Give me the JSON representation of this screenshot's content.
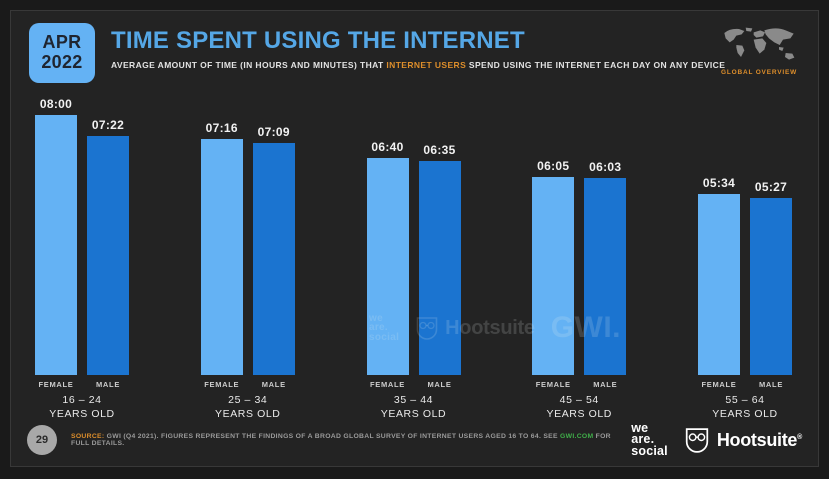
{
  "header": {
    "date_month": "APR",
    "date_year": "2022",
    "title": "TIME SPENT USING THE INTERNET",
    "subtitle_before": "AVERAGE AMOUNT OF TIME (IN HOURS AND MINUTES) THAT ",
    "subtitle_highlight": "INTERNET USERS",
    "subtitle_after": " SPEND USING THE INTERNET EACH DAY ON ANY DEVICE",
    "overview_label": "GLOBAL OVERVIEW"
  },
  "chart_data": {
    "type": "bar",
    "title": "TIME SPENT USING THE INTERNET",
    "categories": [
      "16 – 24",
      "25 – 34",
      "35 – 44",
      "45 – 54",
      "55 – 64"
    ],
    "category_suffix": "YEARS OLD",
    "series": [
      {
        "name": "FEMALE",
        "labels": [
          "08:00",
          "07:16",
          "06:40",
          "06:05",
          "05:34"
        ],
        "minutes": [
          480,
          436,
          400,
          365,
          334
        ],
        "color": "#64b2f4"
      },
      {
        "name": "MALE",
        "labels": [
          "07:22",
          "07:09",
          "06:35",
          "06:03",
          "05:27"
        ],
        "minutes": [
          442,
          429,
          395,
          363,
          327
        ],
        "color": "#1b74d0"
      }
    ],
    "ylim_minutes": [
      0,
      480
    ],
    "value_format": "hh:mm",
    "grid": false,
    "legend_position": "below-bars"
  },
  "brand": {
    "was_line1": "we",
    "was_line2": "are.",
    "was_line3": "social",
    "hootsuite": "Hootsuite",
    "registered": "®",
    "gwi": "GWI."
  },
  "footer": {
    "page_number": "29",
    "source_label": "SOURCE:",
    "source_text_1": " GWI (Q4 2021). FIGURES REPRESENT THE FINDINGS OF A BROAD GLOBAL SURVEY OF INTERNET USERS AGED 16 TO 64. SEE ",
    "source_link": "GWI.COM",
    "source_text_2": " FOR FULL DETAILS."
  },
  "colors": {
    "bg_outer": "#1a1a1a",
    "bg_slide": "#232323",
    "female": "#64b2f4",
    "male": "#1b74d0",
    "title": "#55a7e6",
    "accent_orange": "#dd8e2b",
    "link_green": "#3fae49",
    "text_muted": "#9a9a9a"
  }
}
